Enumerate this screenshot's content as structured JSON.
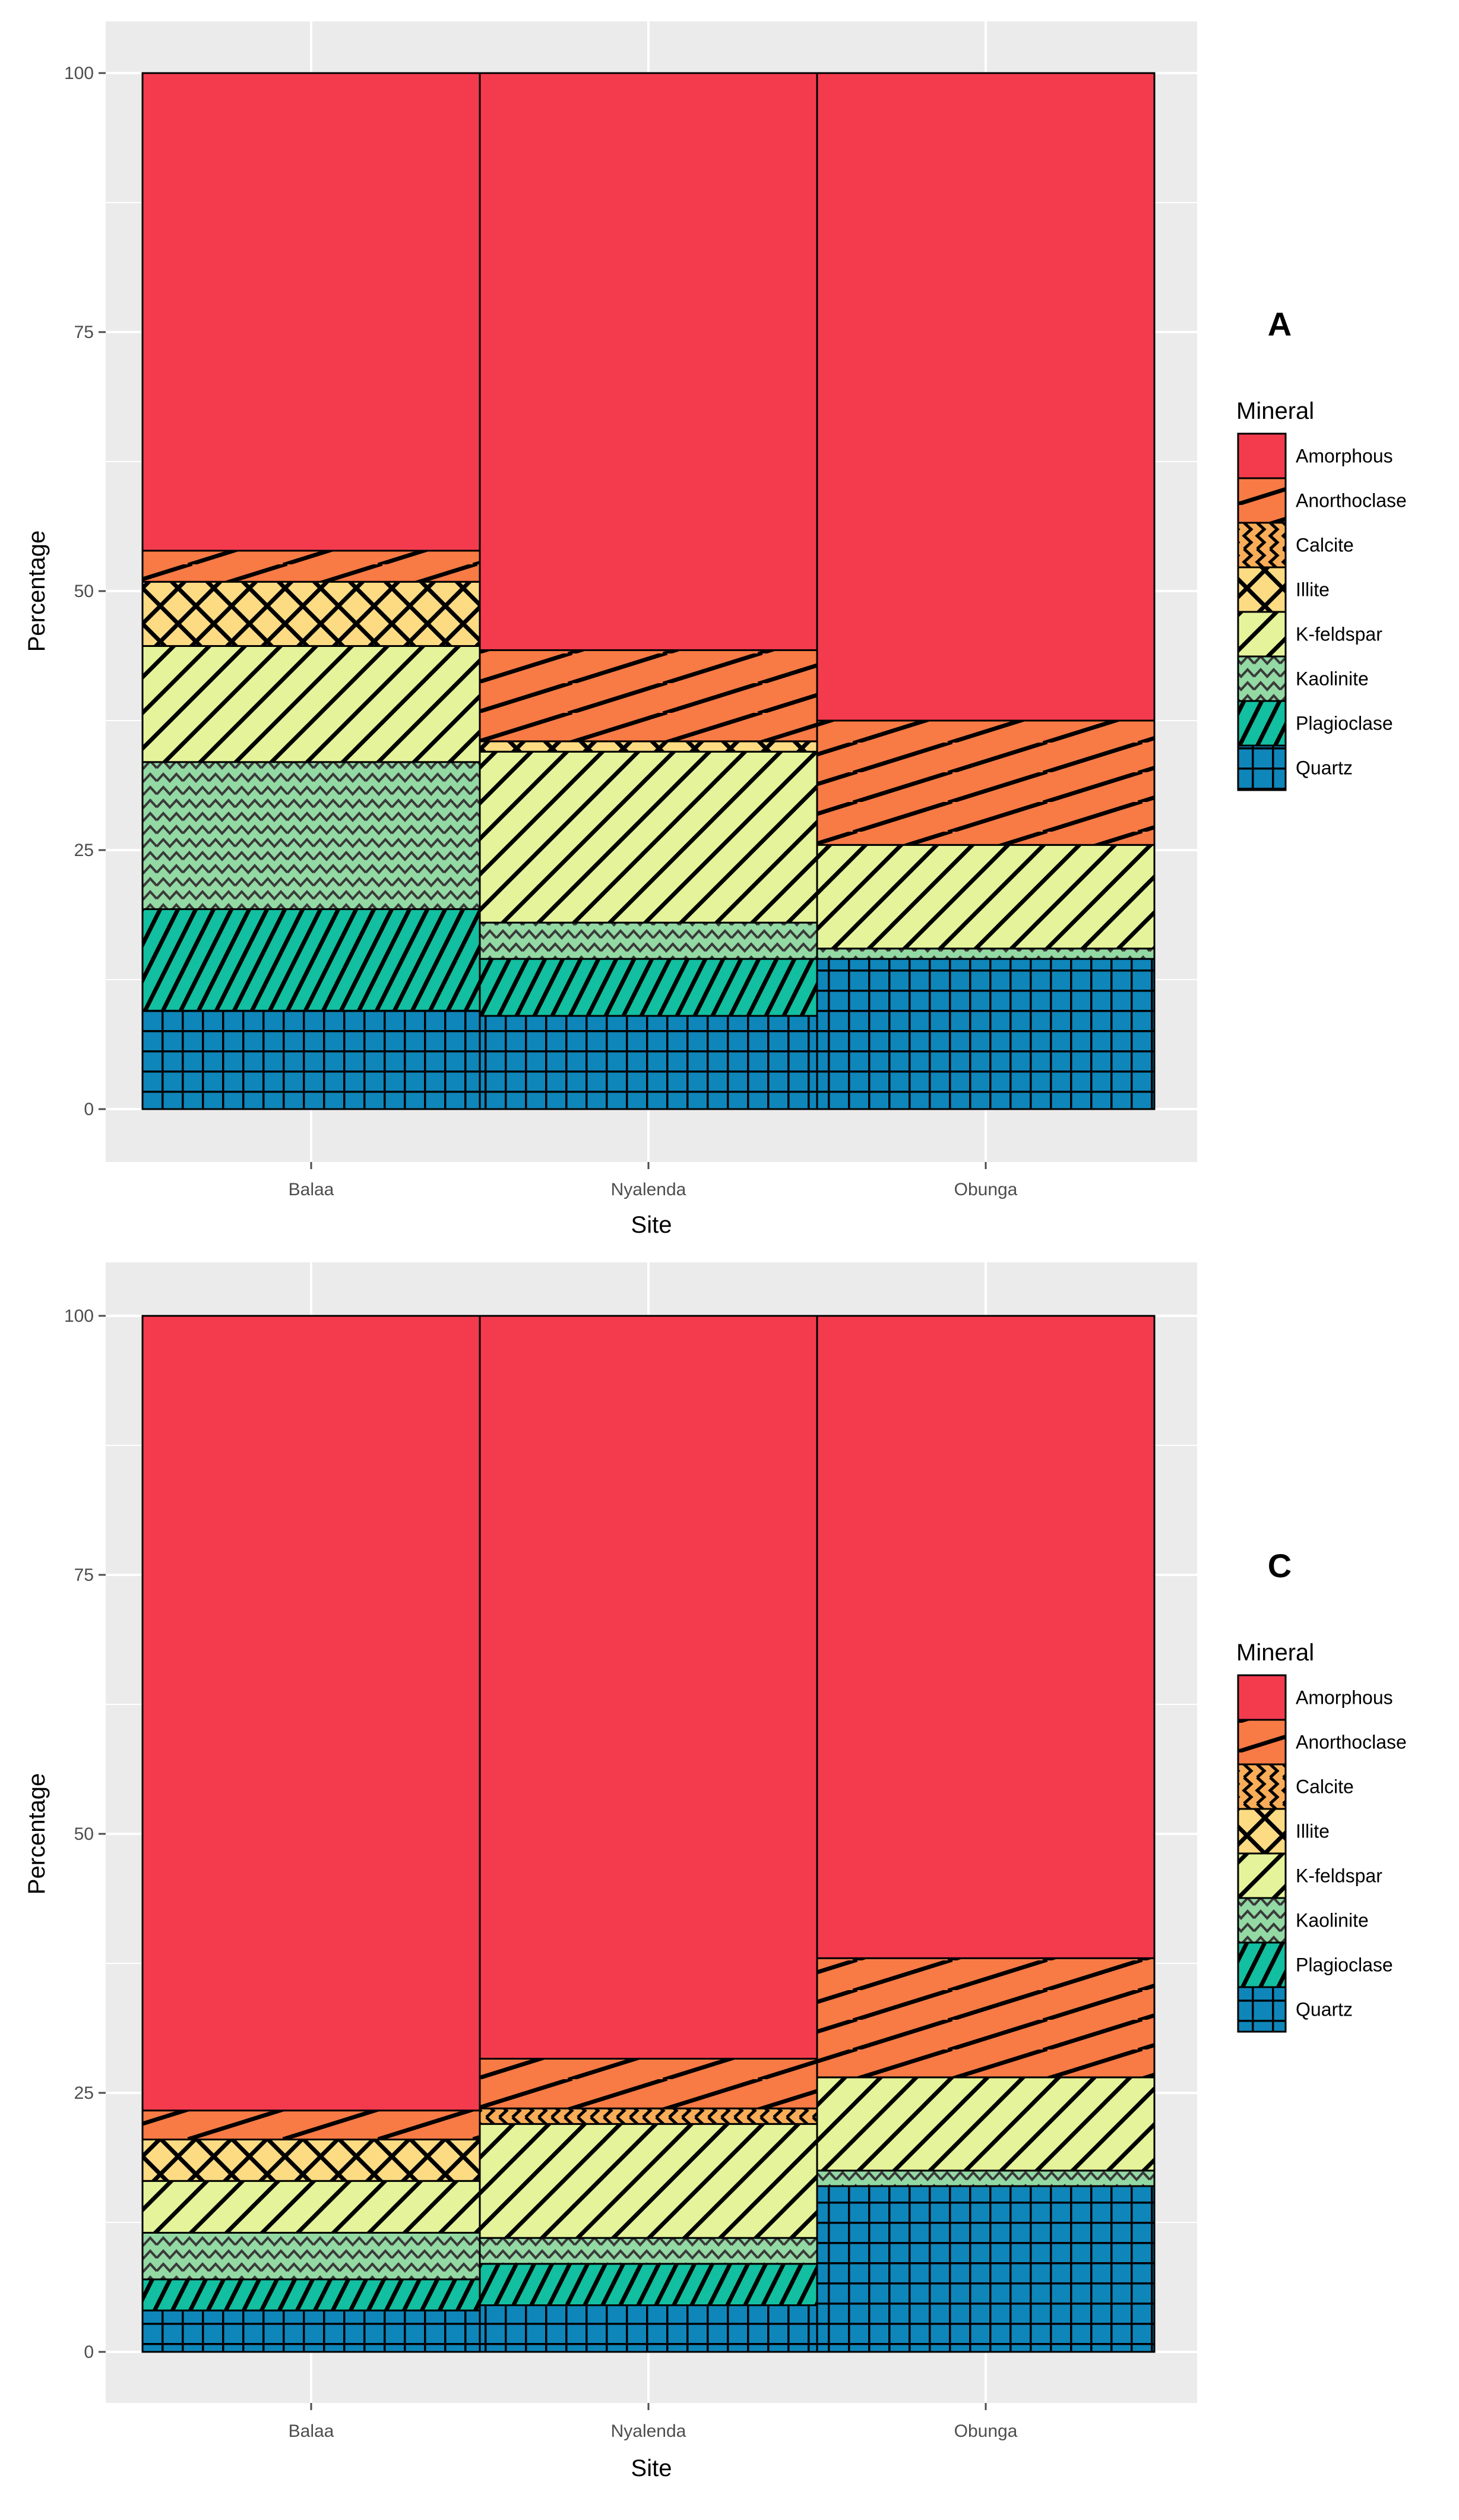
{
  "colors": {
    "Amorphous": "#F43B4E",
    "Anorthoclase": "#F87A45",
    "Calcite": "#F9AD58",
    "Illite": "#FDDB83",
    "K-feldspar": "#E5F49A",
    "Kaolinite": "#93D9A3",
    "Plagioclase": "#12BFA0",
    "Quartz": "#0E86BA",
    "panel_bg": "#EBEBEB",
    "grid": "#FFFFFF"
  },
  "patterns": {
    "Amorphous": "none",
    "Anorthoclase": "shallow-stripe",
    "Calcite": "zigzag-vertical",
    "Illite": "crosshatch",
    "K-feldspar": "diagonal-stripe",
    "Kaolinite": "zigzag",
    "Plagioclase": "steep-stripe",
    "Quartz": "grid"
  },
  "chart_data": [
    {
      "type": "bar",
      "stacked": true,
      "panel_label": "A",
      "xlabel": "Site",
      "ylabel": "Percentage",
      "ylim": [
        0,
        100
      ],
      "yticks": [
        "0",
        "25",
        "50",
        "75",
        "100"
      ],
      "categories": [
        "Balaa",
        "Nyalenda",
        "Obunga"
      ],
      "legend_title": "Mineral",
      "legend_position": "right",
      "series": [
        {
          "name": "Quartz",
          "values": [
            9.5,
            9,
            14.5
          ]
        },
        {
          "name": "Plagioclase",
          "values": [
            9.8,
            5.5,
            0
          ]
        },
        {
          "name": "Kaolinite",
          "values": [
            14.2,
            3.5,
            1
          ]
        },
        {
          "name": "K-feldspar",
          "values": [
            11.2,
            16.5,
            10
          ]
        },
        {
          "name": "Illite",
          "values": [
            6.2,
            1,
            0
          ]
        },
        {
          "name": "Calcite",
          "values": [
            0,
            0,
            0
          ]
        },
        {
          "name": "Anorthoclase",
          "values": [
            3,
            8.8,
            12
          ]
        },
        {
          "name": "Amorphous",
          "values": [
            46.1,
            55.7,
            62.5
          ]
        }
      ]
    },
    {
      "type": "bar",
      "stacked": true,
      "panel_label": "C",
      "xlabel": "Site",
      "ylabel": "Percentage",
      "ylim": [
        0,
        100
      ],
      "yticks": [
        "0",
        "25",
        "50",
        "75",
        "100"
      ],
      "categories": [
        "Balaa",
        "Nyalenda",
        "Obunga"
      ],
      "legend_title": "Mineral",
      "legend_position": "right",
      "series": [
        {
          "name": "Quartz",
          "values": [
            4,
            4.5,
            16
          ]
        },
        {
          "name": "Plagioclase",
          "values": [
            3,
            4,
            0
          ]
        },
        {
          "name": "Kaolinite",
          "values": [
            4.5,
            2.5,
            1.5
          ]
        },
        {
          "name": "K-feldspar",
          "values": [
            5,
            11,
            9
          ]
        },
        {
          "name": "Illite",
          "values": [
            4,
            0,
            0
          ]
        },
        {
          "name": "Calcite",
          "values": [
            0,
            1.5,
            0
          ]
        },
        {
          "name": "Anorthoclase",
          "values": [
            2.8,
            4.8,
            11.5
          ]
        },
        {
          "name": "Amorphous",
          "values": [
            76.7,
            71.7,
            62
          ]
        }
      ]
    }
  ]
}
